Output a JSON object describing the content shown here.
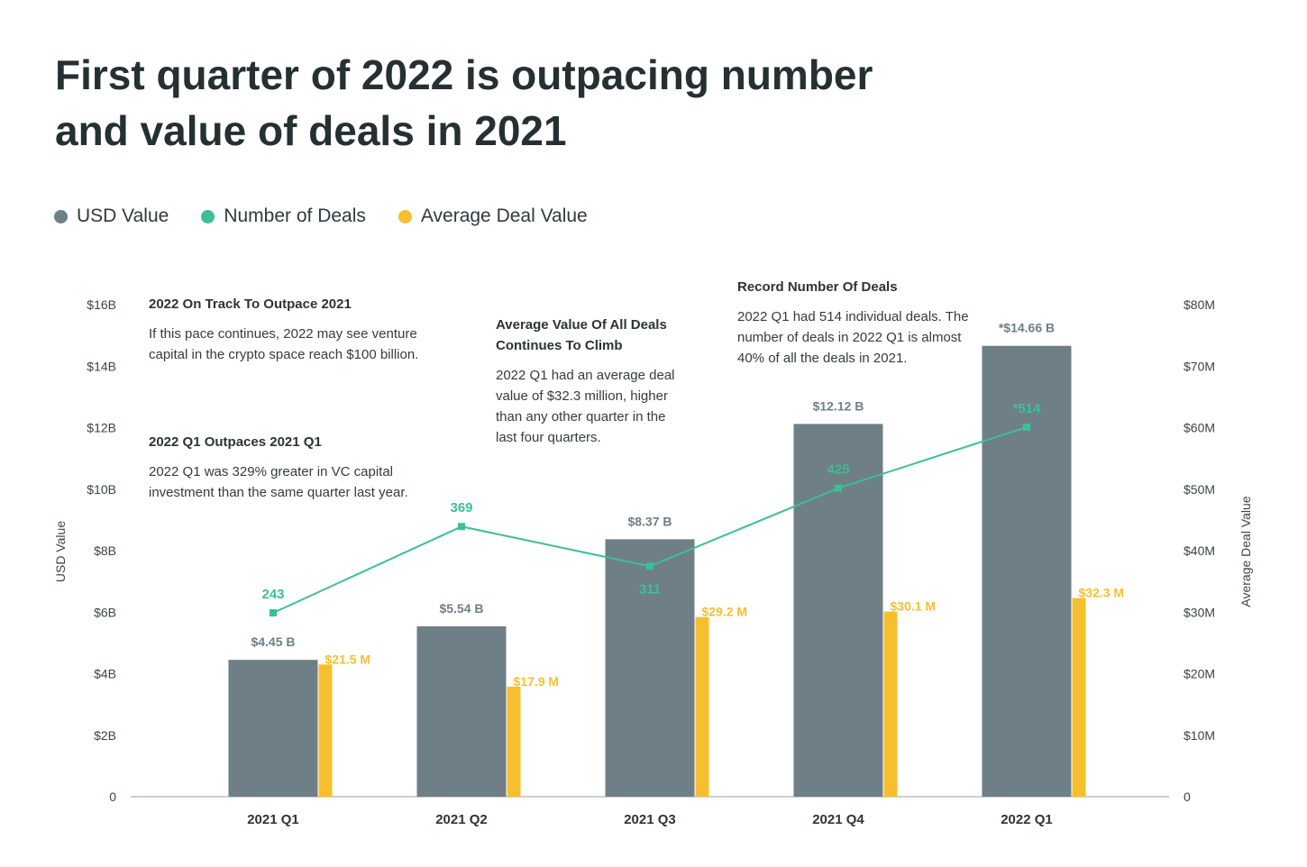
{
  "title": "First quarter of 2022 is outpacing number and value of deals in 2021",
  "colors": {
    "usd": "#6e7f87",
    "deals": "#3dbf96",
    "avg": "#f7bf2f",
    "text": "#2b3436"
  },
  "legend": [
    {
      "label": "USD Value",
      "color": "#6e7f87"
    },
    {
      "label": "Number of Deals",
      "color": "#3dbf96"
    },
    {
      "label": "Average Deal Value",
      "color": "#f7bf2f"
    }
  ],
  "annotations": [
    {
      "title": "2022 On Track To Outpace 2021",
      "body": "If this pace continues, 2022 may see venture capital in the crypto space reach $100 billion."
    },
    {
      "title": "2022 Q1 Outpaces 2021 Q1",
      "body": "2022 Q1 was 329% greater in VC capital investment than the same quarter last year."
    },
    {
      "title": "Average Value Of All Deals Continues To Climb",
      "body": "2022 Q1 had an average deal value of $32.3 million, higher than any other quarter in the last four quarters."
    },
    {
      "title": "Record Number Of Deals",
      "body": "2022 Q1 had 514 individual deals. The number of deals in 2022 Q1 is almost 40% of all the deals in 2021."
    }
  ],
  "chart_data": {
    "type": "bar",
    "categories": [
      "2021 Q1",
      "2021 Q2",
      "2021 Q3",
      "2021 Q4",
      "2022 Q1"
    ],
    "ylabel": "USD Value",
    "y2label": "Average Deal Value",
    "ylim": [
      0,
      16
    ],
    "y2lim": [
      0,
      80
    ],
    "yticks": [
      "0",
      "$2B",
      "$4B",
      "$6B",
      "$8B",
      "$10B",
      "$12B",
      "$14B",
      "$16B"
    ],
    "y2ticks": [
      "0",
      "$10M",
      "$20M",
      "$30M",
      "$40M",
      "$50M",
      "$60M",
      "$70M",
      "$80M"
    ],
    "legend_position": "top-left",
    "grid": false,
    "series": [
      {
        "name": "USD Value",
        "type": "bar",
        "axis": "left",
        "values": [
          4.45,
          5.54,
          8.37,
          12.12,
          14.66
        ],
        "labels": [
          "$4.45 B",
          "$5.54 B",
          "$8.37 B",
          "$12.12 B",
          "*$14.66 B"
        ]
      },
      {
        "name": "Average Deal Value",
        "type": "bar",
        "axis": "right",
        "values": [
          21.5,
          17.9,
          29.2,
          30.1,
          32.3
        ],
        "labels": [
          "$21.5 M",
          "$17.9 M",
          "$29.2 M",
          "$30.1 M",
          "$32.3 M"
        ]
      },
      {
        "name": "Number of Deals",
        "type": "line",
        "values": [
          243,
          369,
          311,
          425,
          514
        ],
        "labels": [
          "243",
          "369",
          "311",
          "425",
          "*514"
        ]
      }
    ]
  }
}
